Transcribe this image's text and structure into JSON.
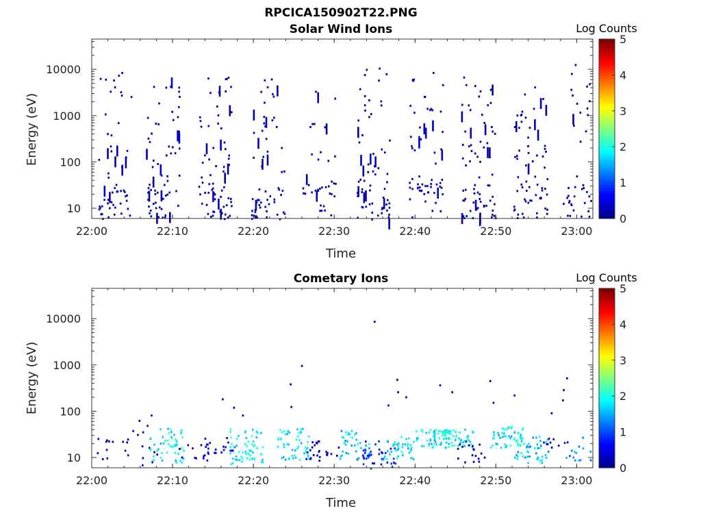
{
  "figure_title": "RPCICA150902T22.PNG",
  "colors": {
    "jet": [
      "#00008f",
      "#0000ff",
      "#00ffff",
      "#ffff00",
      "#ff0000",
      "#800000"
    ]
  },
  "chart_data": [
    {
      "type": "heatmap",
      "title": "Solar Wind Ions",
      "xlabel": "Time",
      "ylabel": "Energy (eV)",
      "yscale": "log",
      "ylim": [
        6,
        45000
      ],
      "xlim": [
        "22:00",
        "23:02"
      ],
      "xticks": [
        "22:00",
        "22:10",
        "22:20",
        "22:30",
        "22:40",
        "22:50",
        "23:00"
      ],
      "yticks": [
        "10",
        "100",
        "1000",
        "10000"
      ],
      "colorbar": {
        "label": "Log Counts",
        "range": [
          0,
          5
        ],
        "ticks": [
          "0",
          "1",
          "2",
          "3",
          "4",
          "5"
        ]
      },
      "bursts": [
        {
          "t": 2.8,
          "n": 60,
          "lo": 6,
          "hi": 12000,
          "level": 0.2,
          "dense_lo": 6,
          "dense_hi": 30
        },
        {
          "t": 8.8,
          "n": 70,
          "lo": 6,
          "hi": 7000,
          "level": 0.25,
          "dense_lo": 6,
          "dense_hi": 60
        },
        {
          "t": 15.2,
          "n": 75,
          "lo": 6,
          "hi": 8000,
          "level": 0.2,
          "dense_lo": 6,
          "dense_hi": 40
        },
        {
          "t": 21.8,
          "n": 65,
          "lo": 6,
          "hi": 7000,
          "level": 0.2,
          "dense_lo": 6,
          "dense_hi": 30
        },
        {
          "t": 28.0,
          "n": 40,
          "lo": 6,
          "hi": 3500,
          "level": 0.2,
          "dense_lo": 20,
          "dense_hi": 40
        },
        {
          "t": 34.8,
          "n": 70,
          "lo": 6,
          "hi": 12000,
          "level": 0.2,
          "dense_lo": 6,
          "dense_hi": 50
        },
        {
          "t": 41.3,
          "n": 65,
          "lo": 6,
          "hi": 9000,
          "level": 0.3,
          "dense_lo": 20,
          "dense_hi": 45
        },
        {
          "t": 47.8,
          "n": 75,
          "lo": 6,
          "hi": 8000,
          "level": 0.2,
          "dense_lo": 6,
          "dense_hi": 35
        },
        {
          "t": 54.2,
          "n": 70,
          "lo": 6,
          "hi": 7000,
          "level": 0.2,
          "dense_lo": 6,
          "dense_hi": 40
        },
        {
          "t": 60.3,
          "n": 45,
          "lo": 6,
          "hi": 16000,
          "level": 0.2,
          "dense_lo": 6,
          "dense_hi": 30
        }
      ]
    },
    {
      "type": "heatmap",
      "title": "Cometary Ions",
      "xlabel": "Time",
      "ylabel": "Energy (eV)",
      "yscale": "log",
      "ylim": [
        6,
        45000
      ],
      "xlim": [
        "22:00",
        "23:02"
      ],
      "xticks": [
        "22:00",
        "22:10",
        "22:20",
        "22:30",
        "22:40",
        "22:50",
        "23:00"
      ],
      "yticks": [
        "10",
        "100",
        "1000",
        "10000"
      ],
      "colorbar": {
        "label": "Log Counts",
        "range": [
          0,
          5
        ],
        "ticks": [
          "0",
          "1",
          "2",
          "3",
          "4",
          "5"
        ]
      },
      "bursts": [
        {
          "t": 2.6,
          "n": 12,
          "lo": 8,
          "hi": 28,
          "level": 0.2
        },
        {
          "t": 5.9,
          "n": 14,
          "lo": 6,
          "hi": 60,
          "level": 0.3
        },
        {
          "t": 9.2,
          "n": 50,
          "lo": 8,
          "hi": 45,
          "level": 1.8
        },
        {
          "t": 12.8,
          "n": 10,
          "lo": 9,
          "hi": 22,
          "level": 0.3
        },
        {
          "t": 15.6,
          "n": 22,
          "lo": 8,
          "hi": 28,
          "level": 0.6
        },
        {
          "t": 19.0,
          "n": 60,
          "lo": 7,
          "hi": 45,
          "level": 1.9
        },
        {
          "t": 25.0,
          "n": 50,
          "lo": 9,
          "hi": 45,
          "level": 1.8
        },
        {
          "t": 28.4,
          "n": 25,
          "lo": 8,
          "hi": 26,
          "level": 0.3
        },
        {
          "t": 32.2,
          "n": 40,
          "lo": 9,
          "hi": 40,
          "level": 1.6
        },
        {
          "t": 35.4,
          "n": 35,
          "lo": 6,
          "hi": 28,
          "level": 0.8
        },
        {
          "t": 38.0,
          "n": 40,
          "lo": 9,
          "hi": 30,
          "level": 1.7
        },
        {
          "t": 42.1,
          "n": 50,
          "lo": 17,
          "hi": 42,
          "level": 1.8
        },
        {
          "t": 45.0,
          "n": 60,
          "lo": 16,
          "hi": 42,
          "level": 1.9
        },
        {
          "t": 47.2,
          "n": 18,
          "lo": 8,
          "hi": 26,
          "level": 0.3
        },
        {
          "t": 51.3,
          "n": 50,
          "lo": 17,
          "hi": 50,
          "level": 1.8
        },
        {
          "t": 54.3,
          "n": 45,
          "lo": 8,
          "hi": 32,
          "level": 1.6
        },
        {
          "t": 57.0,
          "n": 10,
          "lo": 15,
          "hi": 30,
          "level": 0.5
        },
        {
          "t": 60.6,
          "n": 18,
          "lo": 9,
          "hi": 30,
          "level": 1.2
        }
      ],
      "sparse_points": [
        {
          "t": 5.8,
          "e": 65
        },
        {
          "t": 7.3,
          "e": 85
        },
        {
          "t": 16.1,
          "e": 190
        },
        {
          "t": 17.5,
          "e": 125
        },
        {
          "t": 18.6,
          "e": 85
        },
        {
          "t": 24.5,
          "e": 400
        },
        {
          "t": 24.6,
          "e": 130
        },
        {
          "t": 25.9,
          "e": 1000
        },
        {
          "t": 34.9,
          "e": 9000
        },
        {
          "t": 36.6,
          "e": 140
        },
        {
          "t": 37.7,
          "e": 500
        },
        {
          "t": 37.8,
          "e": 270
        },
        {
          "t": 38.8,
          "e": 210
        },
        {
          "t": 43.0,
          "e": 380
        },
        {
          "t": 44.5,
          "e": 270
        },
        {
          "t": 49.2,
          "e": 470
        },
        {
          "t": 49.6,
          "e": 160
        },
        {
          "t": 52.2,
          "e": 230
        },
        {
          "t": 56.8,
          "e": 95
        },
        {
          "t": 58.3,
          "e": 300
        },
        {
          "t": 58.7,
          "e": 540
        },
        {
          "t": 58.2,
          "e": 180
        }
      ]
    }
  ]
}
